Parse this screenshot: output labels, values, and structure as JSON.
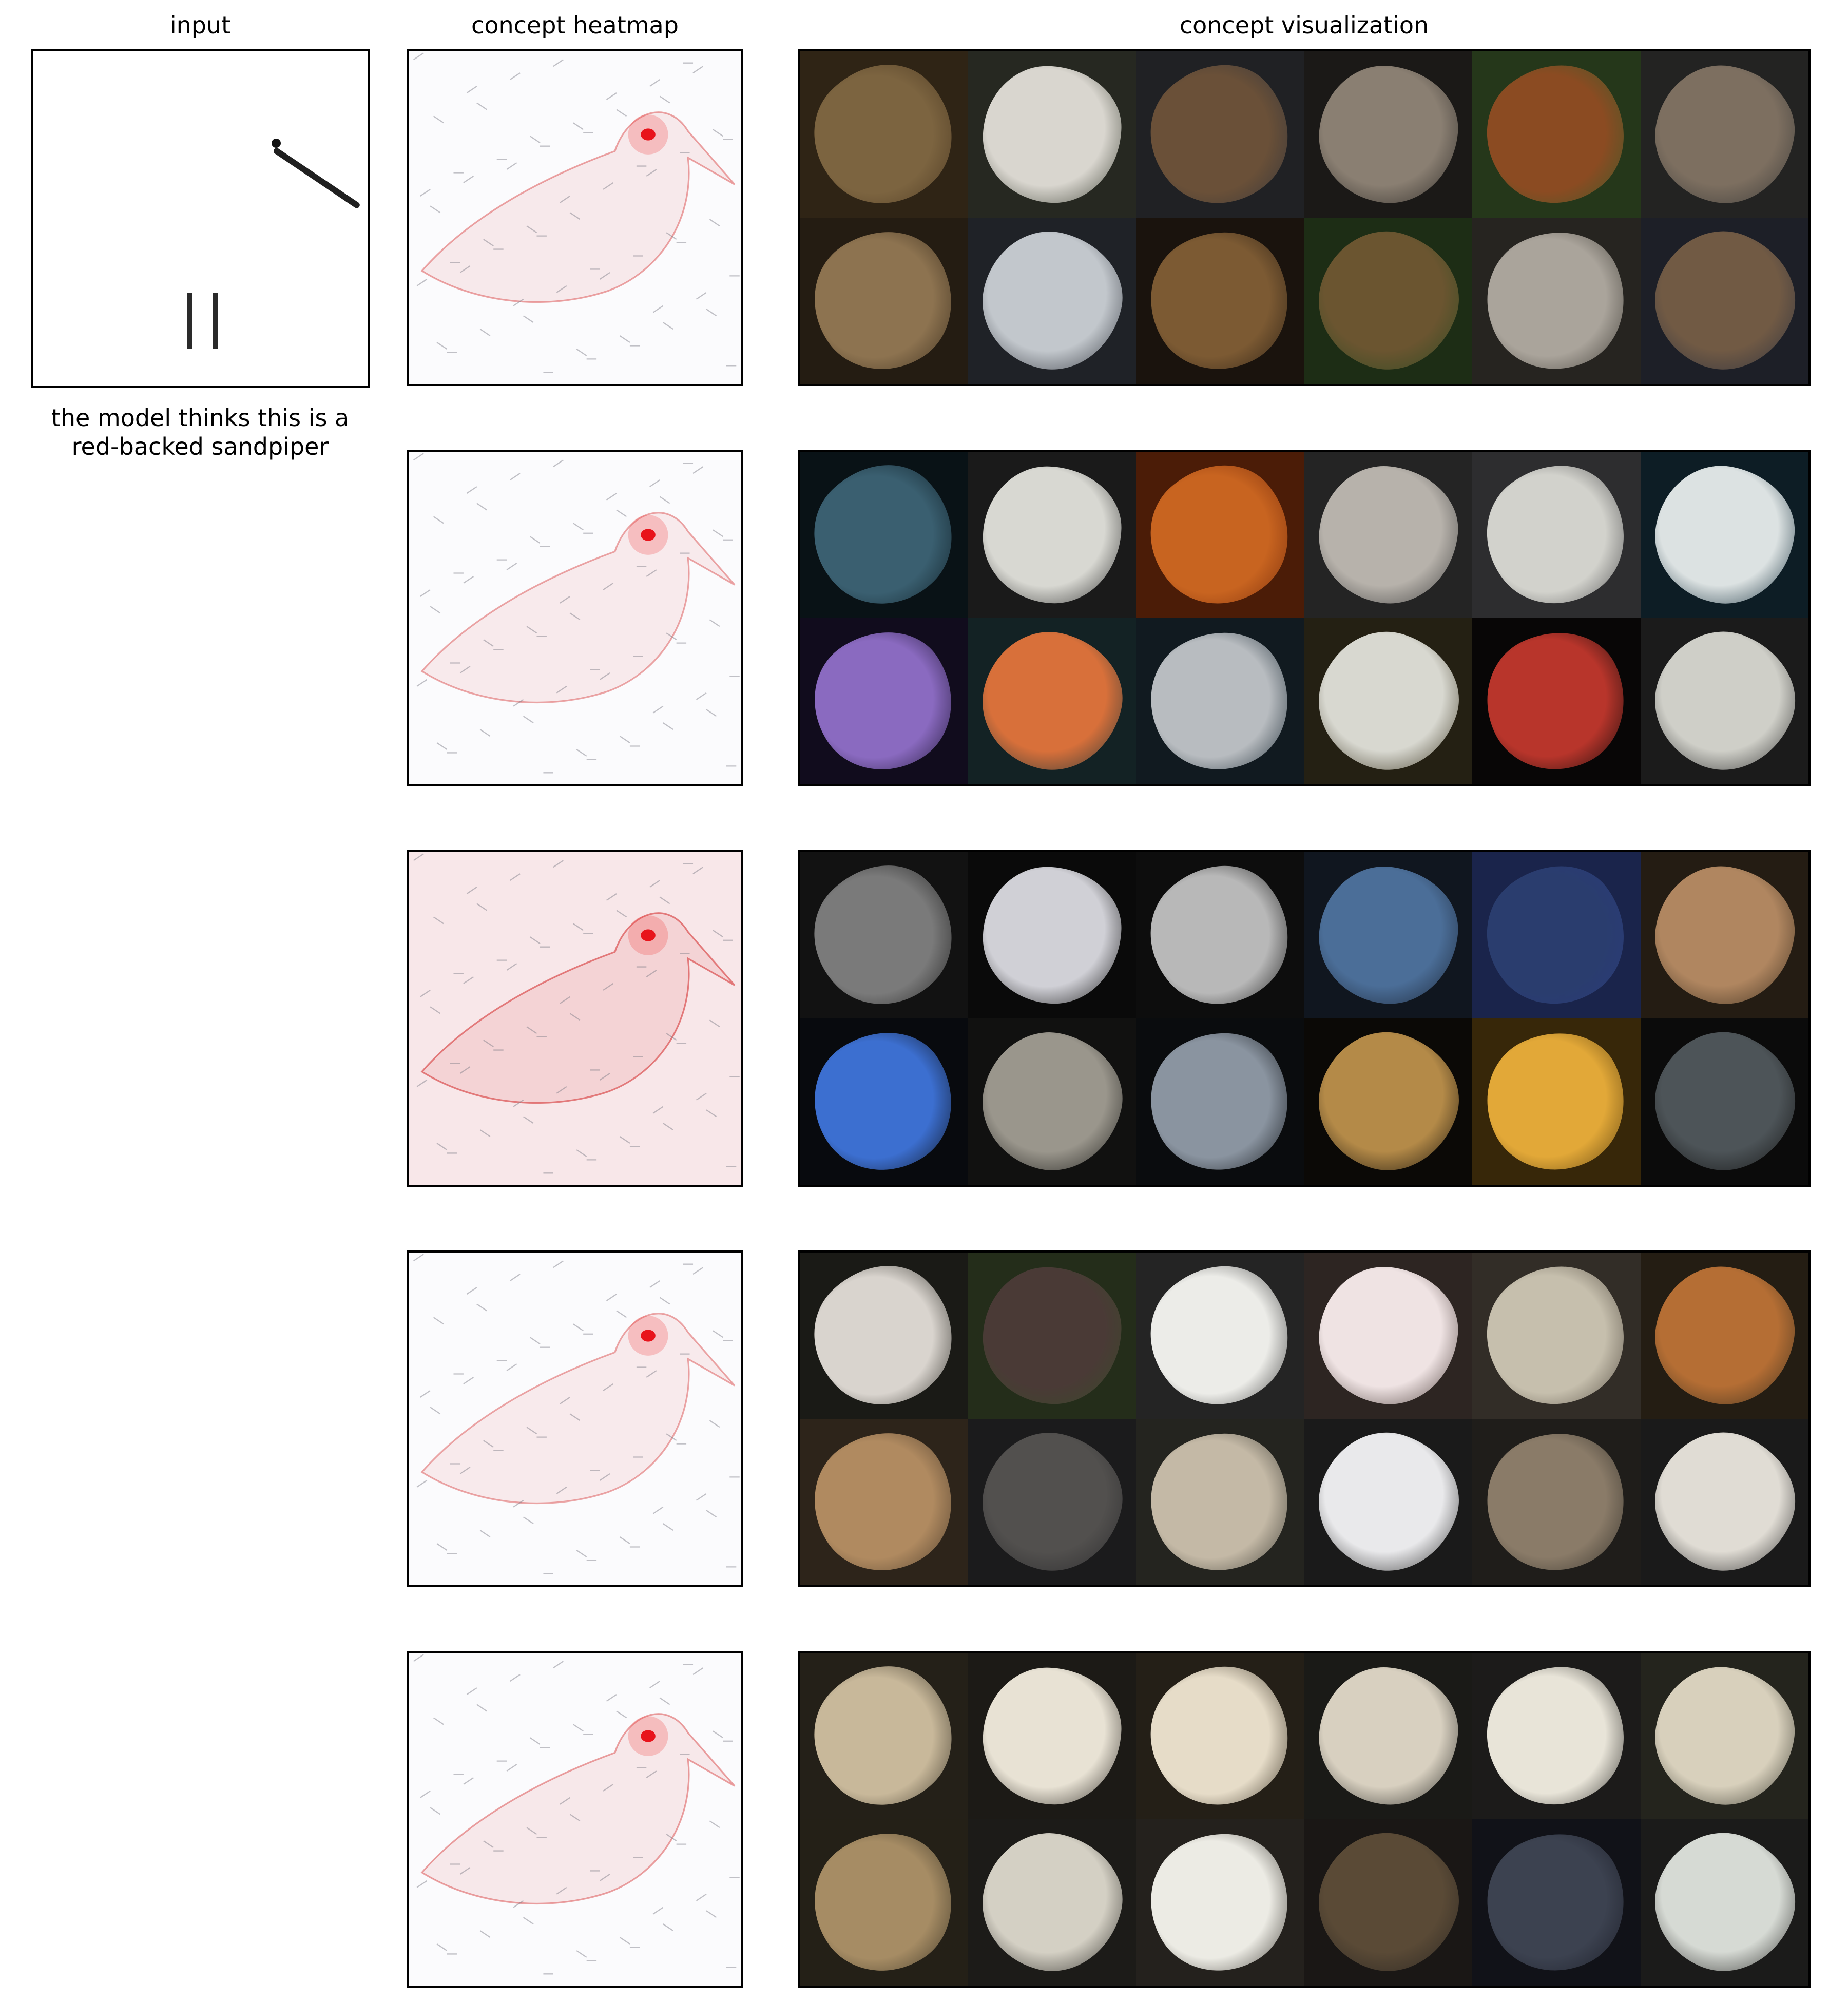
{
  "headers": {
    "input": "input",
    "heatmap": "concept heatmap",
    "visualization": "concept visualization"
  },
  "caption_line1": "the model thinks this is a",
  "caption_line2": "red-backed sandpiper",
  "concepts": [
    {
      "heat_intensity": 0.35,
      "tiles": [
        [
          "#4d3a23",
          "#7c6440"
        ],
        [
          "#3e4236",
          "#d9d6cf"
        ],
        [
          "#34363b",
          "#6a5038"
        ],
        [
          "#2c2926",
          "#8a7f72"
        ],
        [
          "#3d5a2a",
          "#8b4b22"
        ],
        [
          "#393938",
          "#7d6f60"
        ],
        [
          "#3b2e1e",
          "#8d7350"
        ],
        [
          "#33373f",
          "#c2c7cc"
        ],
        [
          "#2b2015",
          "#7c5a33"
        ],
        [
          "#2f4a23",
          "#6b5530"
        ],
        [
          "#3e3b35",
          "#aaa49b"
        ],
        [
          "#2f3340",
          "#715a44"
        ]
      ]
    },
    {
      "heat_intensity": 0.3,
      "tiles": [
        [
          "#0f1e25",
          "#3a5f70"
        ],
        [
          "#2b2b2b",
          "#d8d8d2"
        ],
        [
          "#7a2e0c",
          "#c86420"
        ],
        [
          "#3b3b3b",
          "#b7b2ab"
        ],
        [
          "#4a4a4c",
          "#d2d2cc"
        ],
        [
          "#16303d",
          "#dce2e2"
        ],
        [
          "#1c1430",
          "#8a6ac0"
        ],
        [
          "#20373a",
          "#d8703a"
        ],
        [
          "#1c2b35",
          "#b8bcc0"
        ],
        [
          "#3b3420",
          "#d8d8d0"
        ],
        [
          "#0d0a0a",
          "#b8352b"
        ],
        [
          "#2c2c2c",
          "#cfcfc8"
        ]
      ]
    },
    {
      "heat_intensity": 0.9,
      "tiles": [
        [
          "#1d1d1d",
          "#7a7a7a"
        ],
        [
          "#111111",
          "#d0d0d6"
        ],
        [
          "#151515",
          "#b8b8b8"
        ],
        [
          "#1b2433",
          "#4b6e98"
        ],
        [
          "#2b3a7a",
          "#2a3d6e"
        ],
        [
          "#3b2e1f",
          "#b08660"
        ],
        [
          "#0e1118",
          "#3c6fd0"
        ],
        [
          "#1c1c1a",
          "#9a968c"
        ],
        [
          "#111418",
          "#8a94a0"
        ],
        [
          "#120f0a",
          "#b48a48"
        ],
        [
          "#5a4010",
          "#e2a838"
        ],
        [
          "#121212",
          "#4d5458"
        ]
      ]
    },
    {
      "heat_intensity": 0.3,
      "tiles": [
        [
          "#2b2a24",
          "#d9d4ce"
        ],
        [
          "#3a4a2a",
          "#4a3a36"
        ],
        [
          "#3a3a3a",
          "#ecece8"
        ],
        [
          "#4a3c38",
          "#efe3e3"
        ],
        [
          "#524a40",
          "#c6bfad"
        ],
        [
          "#3a3020",
          "#b56e34"
        ],
        [
          "#4a3b2b",
          "#b08a60"
        ],
        [
          "#2c2c2e",
          "#52504e"
        ],
        [
          "#3b3a33",
          "#c4b9a6"
        ],
        [
          "#2b2b2b",
          "#e9e9eb"
        ],
        [
          "#33302a",
          "#8a7b68"
        ],
        [
          "#2a2a2a",
          "#e0dcd4"
        ]
      ]
    },
    {
      "heat_intensity": 0.4,
      "tiles": [
        [
          "#3a3428",
          "#c8b89a"
        ],
        [
          "#2e2a25",
          "#e8e2d4"
        ],
        [
          "#3b3326",
          "#e6dcc8"
        ],
        [
          "#2a2a26",
          "#d8d0c0"
        ],
        [
          "#2e2d2a",
          "#e8e4d8"
        ],
        [
          "#3a3a30",
          "#d8d0bc"
        ],
        [
          "#3a3426",
          "#a68c64"
        ],
        [
          "#2e2c28",
          "#d4d0c4"
        ],
        [
          "#3a3630",
          "#ecebe4"
        ],
        [
          "#2a2622",
          "#5a4a36"
        ],
        [
          "#1c1e28",
          "#3c4250"
        ],
        [
          "#2c2c2a",
          "#d6dad4"
        ]
      ]
    }
  ]
}
